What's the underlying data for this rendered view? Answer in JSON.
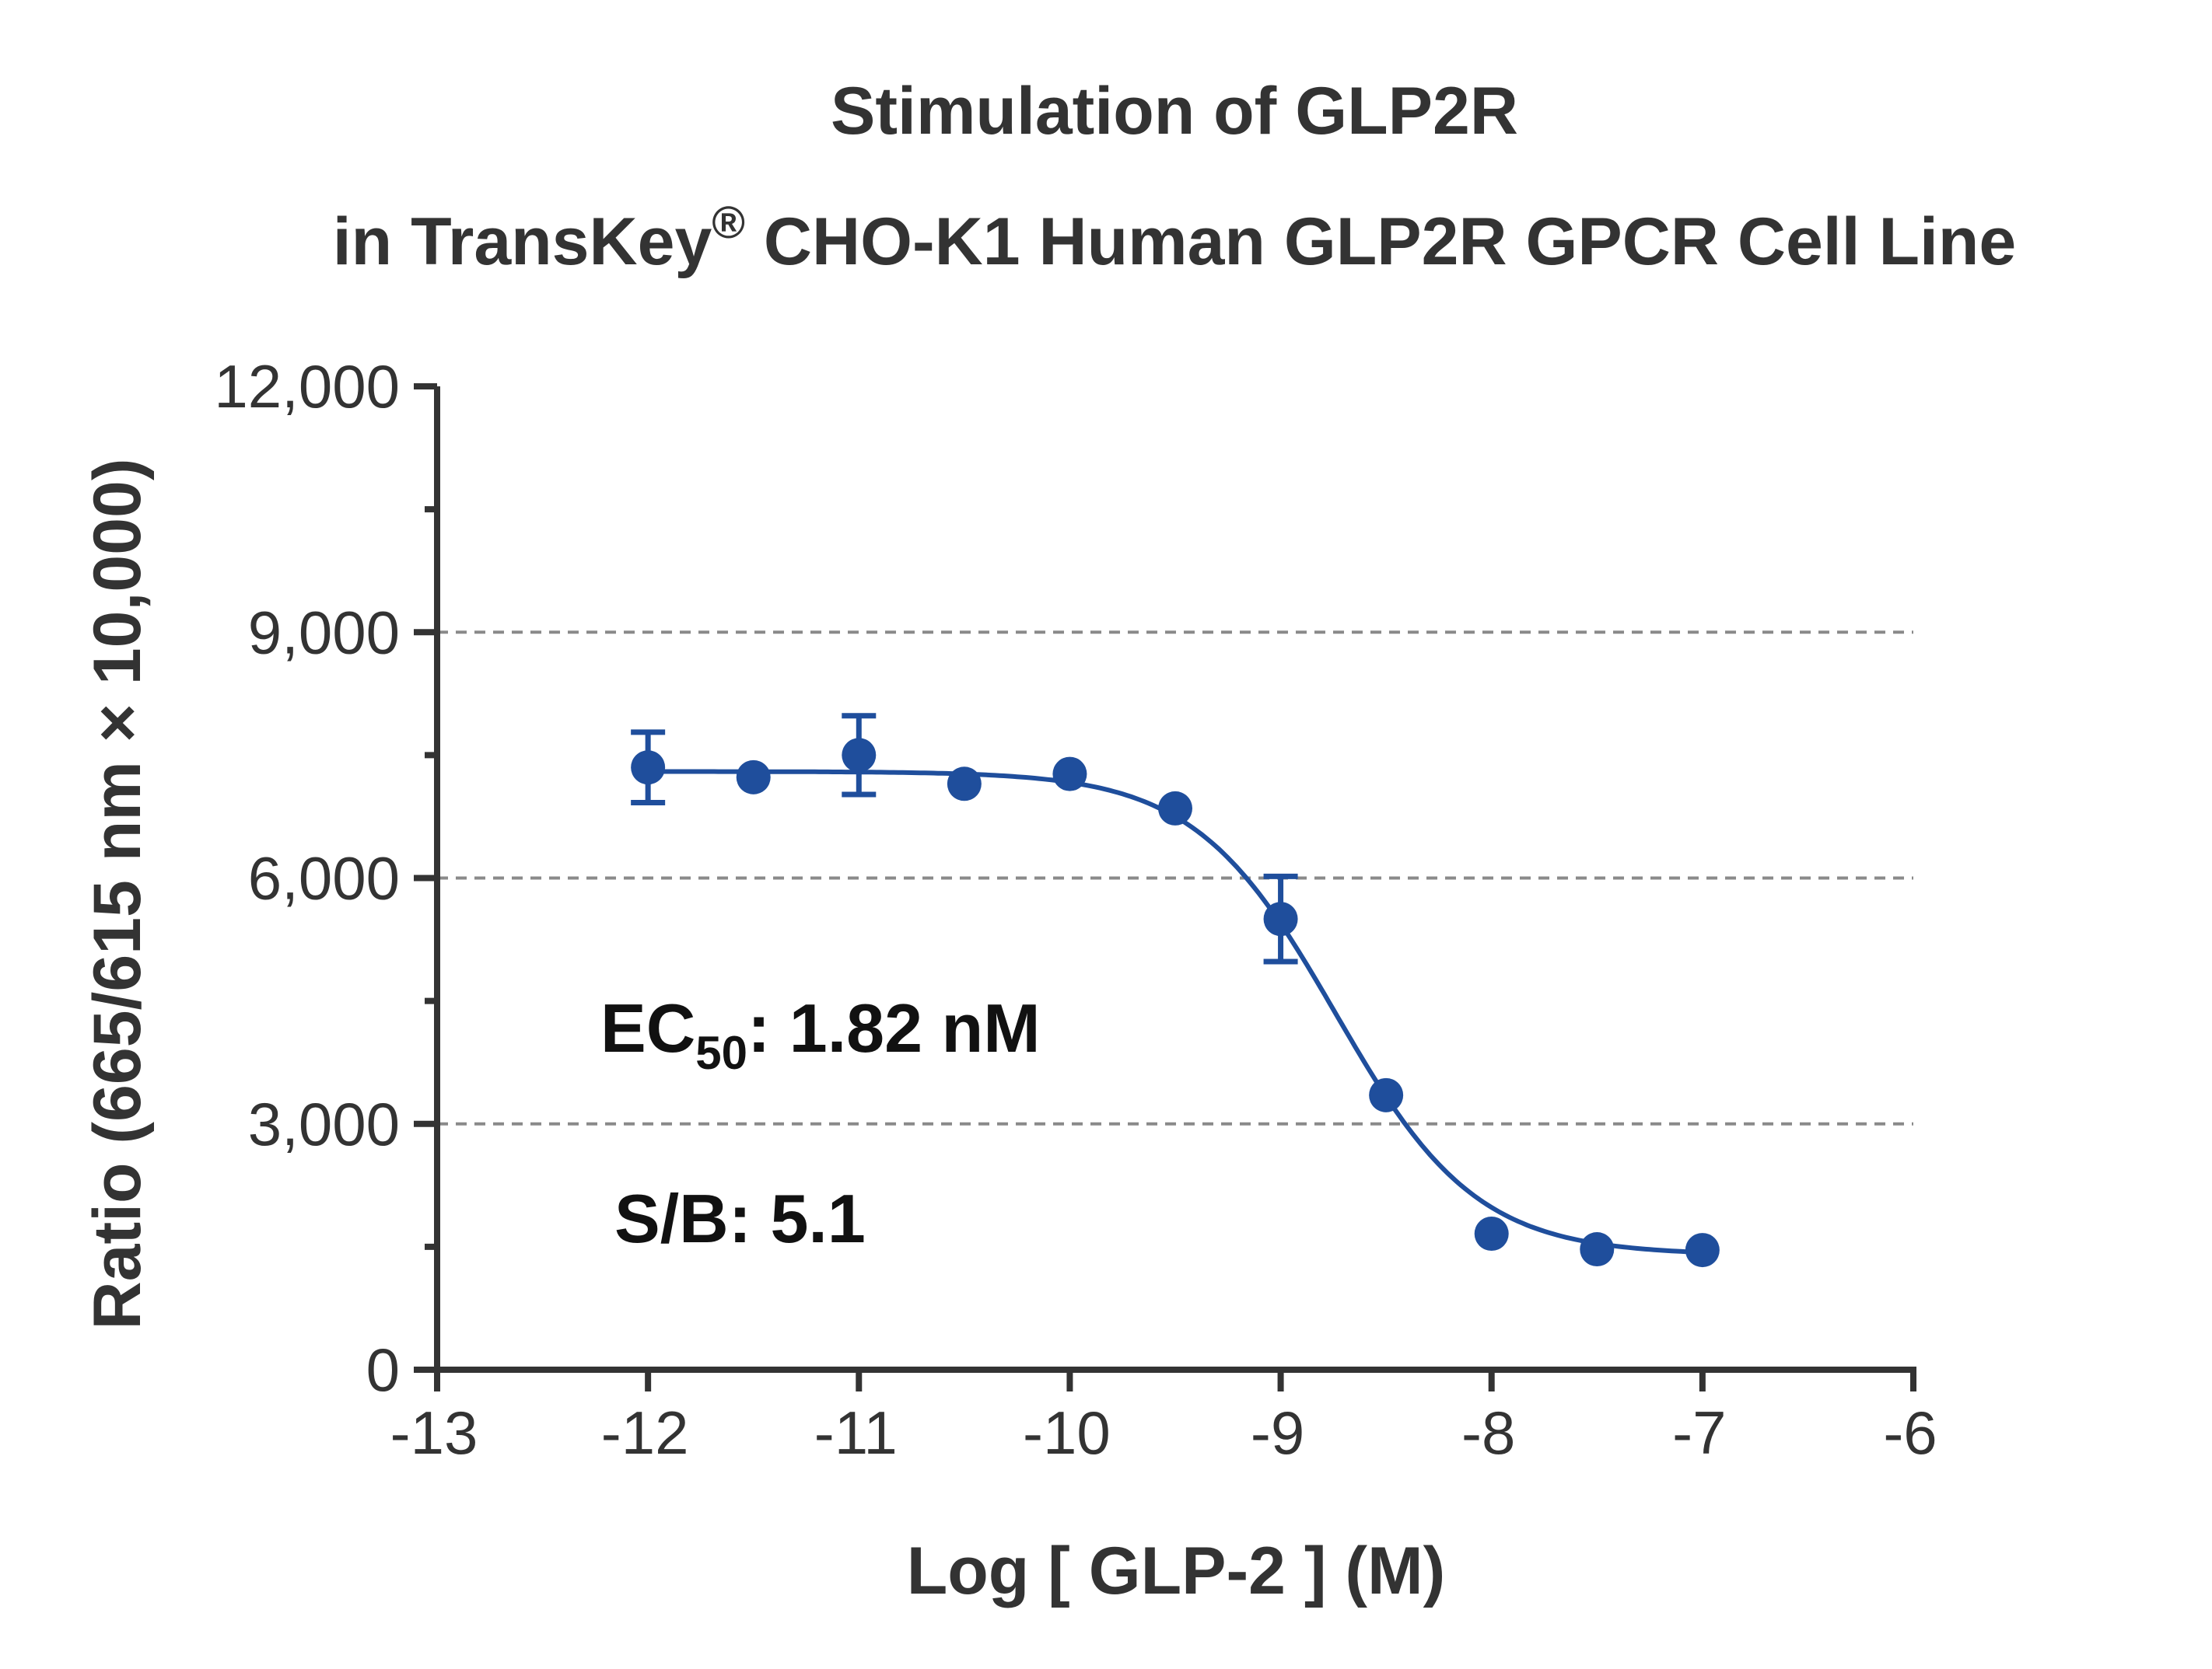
{
  "chart_data": {
    "type": "scatter",
    "title": "Stimulation of  GLP2R",
    "subtitle": {
      "prefix": "in TransKey",
      "superscript": "®",
      "suffix": " CHO-K1 Human GLP2R GPCR Cell Line"
    },
    "xlabel": "Log [ GLP-2 ]  (M)",
    "ylabel": "Ratio (665/615 nm × 10,000)",
    "xlim": [
      -13,
      -6
    ],
    "ylim": [
      0,
      12000
    ],
    "x_ticks": [
      -13,
      -12,
      -11,
      -10,
      -9,
      -8,
      -7,
      -6
    ],
    "x_tick_labels": [
      "-13",
      "-12",
      "-11",
      "-10",
      "-9",
      "-8",
      "-7",
      "-6"
    ],
    "y_ticks": [
      0,
      3000,
      6000,
      9000,
      12000
    ],
    "y_tick_labels": [
      "0",
      "3,000",
      "6,000",
      "9,000",
      "12,000"
    ],
    "y_minor_ticks": [
      1500,
      4500,
      7500,
      10500
    ],
    "grid": "horizontal dashed at 3,000 / 6,000 / 9,000",
    "series": [
      {
        "color": "#1f4e9c",
        "x": [
          -12,
          -11.5,
          -11,
          -10.5,
          -10,
          -9.5,
          -9,
          -8.5,
          -8,
          -7.5,
          -7
        ],
        "y": [
          7350,
          7230,
          7500,
          7150,
          7270,
          6850,
          5500,
          3350,
          1660,
          1470,
          1460
        ],
        "error": [
          430,
          0,
          480,
          0,
          0,
          0,
          520,
          0,
          0,
          0,
          0
        ]
      }
    ],
    "fit": {
      "model": "four-parameter logistic",
      "top": 7300,
      "bottom": 1400,
      "log_ec50": -8.74,
      "hill_slope": -1.3
    },
    "annotations": {
      "ec50": {
        "prefix": "EC",
        "subscript": "50",
        "suffix": ": 1.82 nM"
      },
      "sb": "S/B: 5.1"
    }
  }
}
